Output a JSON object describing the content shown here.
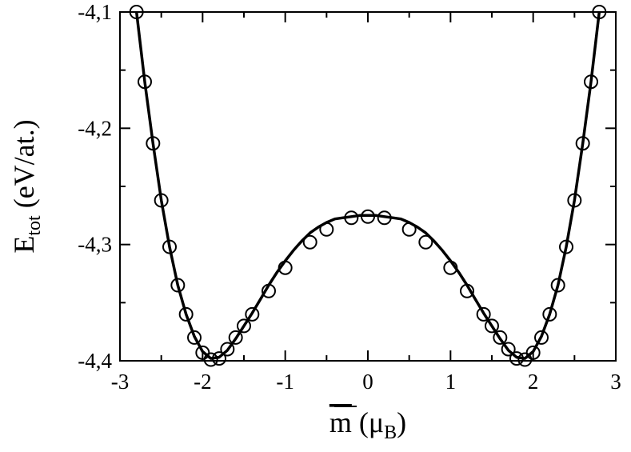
{
  "chart_data": {
    "type": "scatter",
    "xlim": [
      -3,
      3
    ],
    "ylim": [
      -4.4,
      -4.1
    ],
    "x_ticks": [
      -3,
      -2,
      -1,
      0,
      1,
      2,
      3
    ],
    "x_tick_labels": [
      "-3",
      "-2",
      "-1",
      "0",
      "1",
      "2",
      "3"
    ],
    "y_ticks": [
      -4.4,
      -4.3,
      -4.2,
      -4.1
    ],
    "y_tick_labels": [
      "-4,4",
      "-4,3",
      "-4,2",
      "-4,1"
    ],
    "xlabel": {
      "main": "m",
      "paren_open": " (",
      "unit": "μ",
      "unit_sub": "B",
      "paren_close": ")"
    },
    "ylabel": {
      "main": "E",
      "sub": "tot",
      "unit": " (eV/at.)"
    },
    "grid": false,
    "series": [
      {
        "style": "open-circle",
        "x": [
          -2.8,
          -2.7,
          -2.6,
          -2.5,
          -2.4,
          -2.3,
          -2.2,
          -2.1,
          -2.0,
          -1.9,
          -1.8,
          -1.7,
          -1.6,
          -1.5,
          -1.4,
          -1.2,
          -1.0,
          -0.7,
          -0.5,
          -0.2,
          0.0,
          0.2,
          0.5,
          0.7,
          1.0,
          1.2,
          1.4,
          1.5,
          1.6,
          1.7,
          1.8,
          1.9,
          2.0,
          2.1,
          2.2,
          2.3,
          2.4,
          2.5,
          2.6,
          2.7,
          2.8
        ],
        "y": [
          -4.1,
          -4.16,
          -4.213,
          -4.262,
          -4.302,
          -4.335,
          -4.36,
          -4.38,
          -4.393,
          -4.399,
          -4.398,
          -4.39,
          -4.38,
          -4.37,
          -4.36,
          -4.34,
          -4.32,
          -4.298,
          -4.287,
          -4.277,
          -4.276,
          -4.277,
          -4.287,
          -4.298,
          -4.32,
          -4.34,
          -4.36,
          -4.37,
          -4.38,
          -4.39,
          -4.398,
          -4.399,
          -4.393,
          -4.38,
          -4.36,
          -4.335,
          -4.302,
          -4.262,
          -4.213,
          -4.16,
          -4.1
        ]
      },
      {
        "style": "line",
        "x": [
          -2.8,
          -2.7,
          -2.6,
          -2.5,
          -2.4,
          -2.3,
          -2.2,
          -2.1,
          -2.0,
          -1.9,
          -1.8,
          -1.7,
          -1.6,
          -1.5,
          -1.4,
          -1.3,
          -1.2,
          -1.1,
          -1.0,
          -0.9,
          -0.8,
          -0.7,
          -0.6,
          -0.5,
          -0.4,
          -0.3,
          -0.2,
          -0.1,
          0.0,
          0.1,
          0.2,
          0.3,
          0.4,
          0.5,
          0.6,
          0.7,
          0.8,
          0.9,
          1.0,
          1.1,
          1.2,
          1.3,
          1.4,
          1.5,
          1.6,
          1.7,
          1.8,
          1.9,
          2.0,
          2.1,
          2.2,
          2.3,
          2.4,
          2.5,
          2.6,
          2.7,
          2.8
        ],
        "y": [
          -4.1,
          -4.16,
          -4.213,
          -4.262,
          -4.302,
          -4.335,
          -4.36,
          -4.379,
          -4.392,
          -4.398,
          -4.397,
          -4.391,
          -4.381,
          -4.37,
          -4.359,
          -4.347,
          -4.335,
          -4.324,
          -4.314,
          -4.305,
          -4.297,
          -4.29,
          -4.285,
          -4.281,
          -4.278,
          -4.277,
          -4.276,
          -4.275,
          -4.275,
          -4.275,
          -4.276,
          -4.277,
          -4.278,
          -4.281,
          -4.285,
          -4.29,
          -4.297,
          -4.305,
          -4.314,
          -4.324,
          -4.335,
          -4.347,
          -4.359,
          -4.37,
          -4.381,
          -4.391,
          -4.397,
          -4.398,
          -4.392,
          -4.379,
          -4.36,
          -4.335,
          -4.302,
          -4.262,
          -4.213,
          -4.16,
          -4.1
        ]
      }
    ]
  }
}
